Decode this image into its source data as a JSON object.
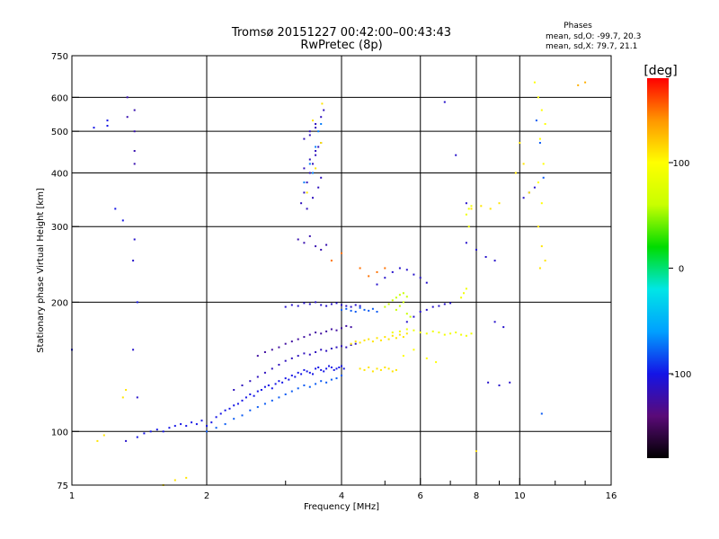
{
  "chart_data": {
    "type": "scatter",
    "title": "Tromsø 20151227 00:42:00–00:43:43",
    "subtitle": "RwPretec (8p)",
    "xlabel": "Frequency [MHz]",
    "ylabel": "Stationary phase Virtual Height [km]",
    "x_scale": "log",
    "y_scale": "log",
    "xlim": [
      1,
      16
    ],
    "ylim": [
      75,
      750
    ],
    "x_ticks": [
      {
        "v": 1,
        "label": "1"
      },
      {
        "v": 2,
        "label": "2"
      },
      {
        "v": 4,
        "label": "4"
      },
      {
        "v": 6,
        "label": "6"
      },
      {
        "v": 8,
        "label": "8"
      },
      {
        "v": 10,
        "label": "10"
      },
      {
        "v": 16,
        "label": "16"
      }
    ],
    "x_minor_ticks": [
      3,
      5,
      7,
      9,
      12,
      14
    ],
    "y_ticks": [
      {
        "v": 75,
        "label": "75"
      },
      {
        "v": 100,
        "label": "100"
      },
      {
        "v": 200,
        "label": "200"
      },
      {
        "v": 300,
        "label": "300"
      },
      {
        "v": 400,
        "label": "400"
      },
      {
        "v": 500,
        "label": "500"
      },
      {
        "v": 600,
        "label": "600"
      },
      {
        "v": 750,
        "label": "750"
      }
    ],
    "grid": true,
    "stats": {
      "heading": "Phases",
      "line1": "mean, sd,O: -99.7, 20.3",
      "line2": "mean, sd,X:  79.7, 21.1"
    },
    "colorbar": {
      "label": "[deg]",
      "range": [
        -180,
        180
      ],
      "ticks": [
        {
          "v": 100,
          "label": "100"
        },
        {
          "v": 0,
          "label": "0"
        },
        {
          "v": -100,
          "label": "-100"
        }
      ],
      "colors": [
        "#000000",
        "#5a0a78",
        "#1414e6",
        "#00a0ff",
        "#00e6e6",
        "#00dc00",
        "#c8ff00",
        "#ffff00",
        "#ff9600",
        "#ff0000"
      ]
    },
    "series": [
      {
        "x": [
          1.33,
          1.38,
          1.33,
          1.38,
          1.38,
          1.38
        ],
        "y": [
          600,
          560,
          540,
          500,
          450,
          420
        ],
        "phase": -120
      },
      {
        "x": [
          1.38,
          1.37,
          1.37,
          1.4,
          1.32
        ],
        "y": [
          280,
          250,
          155,
          120,
          95
        ],
        "phase": -110
      },
      {
        "x": [
          1.12,
          1.2,
          1.2,
          1.3,
          1.25,
          1.4,
          1.0
        ],
        "y": [
          510,
          530,
          515,
          310,
          330,
          200,
          155
        ],
        "phase": -100
      },
      {
        "x": [
          1.3,
          1.32,
          1.18,
          1.14
        ],
        "y": [
          120,
          125,
          98,
          95
        ],
        "phase": 110
      },
      {
        "x": [
          1.4,
          1.45,
          1.5,
          1.55,
          1.6,
          1.65,
          1.7,
          1.75,
          1.8,
          1.85,
          1.9,
          1.95,
          2.0,
          2.05,
          2.1,
          2.15,
          2.2,
          2.25,
          2.3,
          2.35,
          2.4,
          2.45,
          2.5,
          2.55,
          2.6,
          2.65,
          2.7,
          2.75,
          2.8,
          2.85,
          2.9,
          2.95,
          3.0,
          3.05,
          3.1,
          3.15,
          3.2,
          3.25,
          3.3,
          3.35,
          3.4,
          3.45,
          3.5,
          3.55,
          3.6,
          3.65,
          3.7,
          3.75,
          3.8,
          3.85,
          3.9,
          3.95,
          4.0,
          4.05
        ],
        "y": [
          97,
          99,
          100,
          101,
          100,
          102,
          103,
          104,
          103,
          105,
          104,
          106,
          103,
          105,
          108,
          110,
          112,
          113,
          115,
          116,
          118,
          120,
          122,
          121,
          124,
          125,
          127,
          128,
          126,
          129,
          131,
          130,
          133,
          132,
          135,
          134,
          137,
          136,
          139,
          138,
          137,
          136,
          140,
          141,
          139,
          138,
          140,
          142,
          141,
          139,
          140,
          141,
          142,
          140
        ],
        "phase": -100
      },
      {
        "x": [
          2.0,
          2.1,
          2.2,
          2.3,
          2.4,
          2.5,
          2.6,
          2.7,
          2.8,
          2.9,
          3.0,
          3.1,
          3.2,
          3.3,
          3.4,
          3.5,
          3.6,
          3.7,
          3.8,
          3.9,
          4.0
        ],
        "y": [
          100,
          102,
          104,
          107,
          109,
          112,
          114,
          116,
          118,
          120,
          122,
          124,
          126,
          128,
          127,
          129,
          131,
          130,
          132,
          133,
          135
        ],
        "phase": -80
      },
      {
        "x": [
          2.3,
          2.4,
          2.5,
          2.6,
          2.7,
          2.8,
          2.9,
          3.0,
          3.1,
          3.2,
          3.3,
          3.4,
          3.5,
          3.6,
          3.7,
          3.8,
          3.9,
          4.0,
          4.1,
          4.2,
          4.3
        ],
        "y": [
          125,
          128,
          131,
          134,
          137,
          140,
          143,
          146,
          148,
          150,
          152,
          151,
          153,
          155,
          154,
          156,
          157,
          158,
          157,
          159,
          160
        ],
        "phase": -115
      },
      {
        "x": [
          2.6,
          2.7,
          2.8,
          2.9,
          3.0,
          3.1,
          3.2,
          3.3,
          3.4,
          3.5,
          3.6,
          3.7,
          3.8,
          3.9,
          4.0,
          4.1,
          4.2
        ],
        "y": [
          150,
          153,
          155,
          157,
          160,
          162,
          164,
          166,
          168,
          170,
          169,
          171,
          173,
          172,
          174,
          176,
          175
        ],
        "phase": -125
      },
      {
        "x": [
          3.0,
          3.1,
          3.2,
          3.3,
          3.4,
          3.5,
          3.6,
          3.7,
          3.8,
          3.9,
          4.0,
          4.1,
          4.2,
          4.3,
          4.4
        ],
        "y": [
          195,
          197,
          196,
          199,
          198,
          200,
          197,
          196,
          198,
          199,
          197,
          196,
          195,
          197,
          196
        ],
        "phase": -110
      },
      {
        "x": [
          4.0,
          4.1,
          4.2,
          4.3,
          4.4,
          4.5,
          4.6,
          4.7,
          4.8
        ],
        "y": [
          192,
          193,
          191,
          190,
          194,
          192,
          191,
          193,
          190
        ],
        "phase": -80
      },
      {
        "x": [
          3.25,
          3.3,
          3.35,
          3.4,
          3.45,
          3.5,
          3.55,
          3.3,
          3.4,
          3.5,
          3.6,
          3.65,
          3.35,
          3.45,
          3.55,
          3.6,
          3.3,
          3.4,
          3.5,
          3.6,
          3.4,
          3.5
        ],
        "y": [
          340,
          360,
          380,
          400,
          420,
          440,
          460,
          480,
          500,
          520,
          540,
          560,
          330,
          350,
          370,
          390,
          410,
          430,
          450,
          470,
          490,
          510
        ],
        "phase": -115
      },
      {
        "x": [
          3.3,
          3.4,
          3.5,
          3.6,
          3.45,
          3.55
        ],
        "y": [
          380,
          420,
          460,
          520,
          400,
          500
        ],
        "phase": -70
      },
      {
        "x": [
          3.35,
          3.5,
          3.6,
          3.45,
          3.62
        ],
        "y": [
          360,
          410,
          470,
          530,
          580
        ],
        "phase": 110
      },
      {
        "x": [
          3.2,
          3.3,
          3.4,
          3.5,
          3.6,
          3.7
        ],
        "y": [
          280,
          275,
          285,
          270,
          265,
          272
        ],
        "phase": -120
      },
      {
        "x": [
          4.2,
          4.3,
          4.4,
          4.5,
          4.6,
          4.7,
          4.8,
          4.9,
          5.0,
          5.1,
          5.2,
          5.3,
          5.4,
          5.5,
          5.6
        ],
        "y": [
          160,
          162,
          161,
          163,
          164,
          162,
          165,
          163,
          166,
          164,
          167,
          165,
          168,
          166,
          169
        ],
        "phase": 110
      },
      {
        "x": [
          4.4,
          4.5,
          4.6,
          4.7,
          4.8,
          4.9,
          5.0,
          5.1,
          5.2,
          5.3
        ],
        "y": [
          140,
          139,
          141,
          138,
          140,
          139,
          141,
          140,
          138,
          139
        ],
        "phase": 110
      },
      {
        "x": [
          5.0,
          5.1,
          5.2,
          5.3,
          5.4,
          5.5,
          5.6,
          5.5,
          5.4,
          5.3,
          5.6,
          5.7
        ],
        "y": [
          195,
          198,
          202,
          205,
          208,
          210,
          206,
          200,
          196,
          192,
          188,
          185
        ],
        "phase": 60
      },
      {
        "x": [
          5.2,
          5.4,
          5.6,
          5.8,
          6.0,
          6.2,
          6.4,
          6.6,
          6.8,
          7.0,
          7.2,
          7.4,
          7.6,
          7.8
        ],
        "y": [
          170,
          171,
          173,
          172,
          170,
          169,
          171,
          170,
          168,
          169,
          170,
          168,
          167,
          169
        ],
        "phase": 90
      },
      {
        "x": [
          5.6,
          5.8,
          6.0,
          6.2,
          6.4,
          6.6,
          6.8,
          7.0
        ],
        "y": [
          180,
          185,
          190,
          192,
          195,
          196,
          198,
          199
        ],
        "phase": -110
      },
      {
        "x": [
          4.8,
          5.0,
          5.2,
          5.4,
          5.6,
          5.8,
          6.0,
          6.2
        ],
        "y": [
          220,
          228,
          235,
          240,
          238,
          232,
          228,
          222
        ],
        "phase": -110
      },
      {
        "x": [
          7.4,
          7.5,
          7.6,
          7.7,
          7.8,
          7.6,
          7.7
        ],
        "y": [
          205,
          210,
          215,
          330,
          335,
          320,
          300
        ],
        "phase": 90
      },
      {
        "x": [
          7.8,
          8.2,
          8.6,
          9.0
        ],
        "y": [
          330,
          335,
          330,
          340
        ],
        "phase": 110
      },
      {
        "x": [
          7.6,
          8.0,
          8.4,
          8.8
        ],
        "y": [
          275,
          265,
          255,
          250
        ],
        "phase": -110
      },
      {
        "x": [
          8.5,
          9.0,
          9.5,
          9.2,
          8.8
        ],
        "y": [
          130,
          128,
          130,
          175,
          180
        ],
        "phase": -110
      },
      {
        "x": [
          10.8,
          11.0,
          11.2,
          11.4,
          11.1,
          11.3,
          11.0,
          11.2
        ],
        "y": [
          650,
          600,
          560,
          520,
          480,
          420,
          380,
          340
        ],
        "phase": 100
      },
      {
        "x": [
          11.0,
          11.2,
          11.4,
          11.1
        ],
        "y": [
          300,
          270,
          250,
          240
        ],
        "phase": 110
      },
      {
        "x": [
          10.9,
          11.1,
          11.3,
          11.2
        ],
        "y": [
          530,
          470,
          390,
          110
        ],
        "phase": -80
      },
      {
        "x": [
          10.2,
          10.5,
          10.8
        ],
        "y": [
          350,
          360,
          370
        ],
        "phase": -110
      },
      {
        "x": [
          9.8,
          10.0,
          10.2,
          10.5
        ],
        "y": [
          400,
          470,
          420,
          360
        ],
        "phase": 110
      },
      {
        "x": [
          14.0,
          13.5
        ],
        "y": [
          650,
          640
        ],
        "phase": 130
      },
      {
        "x": [
          6.8,
          7.2,
          7.6,
          8.0
        ],
        "y": [
          585,
          440,
          340,
          90
        ],
        "phase": -110
      },
      {
        "x": [
          1.6,
          1.7,
          1.8,
          8.0
        ],
        "y": [
          75,
          77,
          78,
          90
        ],
        "phase": 110
      },
      {
        "x": [
          4.0,
          3.8,
          4.4,
          4.6,
          4.8,
          5.0
        ],
        "y": [
          260,
          250,
          240,
          230,
          235,
          240
        ],
        "phase": 150
      },
      {
        "x": [
          5.5,
          5.8,
          6.2,
          6.5
        ],
        "y": [
          150,
          155,
          148,
          145
        ],
        "phase": 100
      }
    ]
  }
}
